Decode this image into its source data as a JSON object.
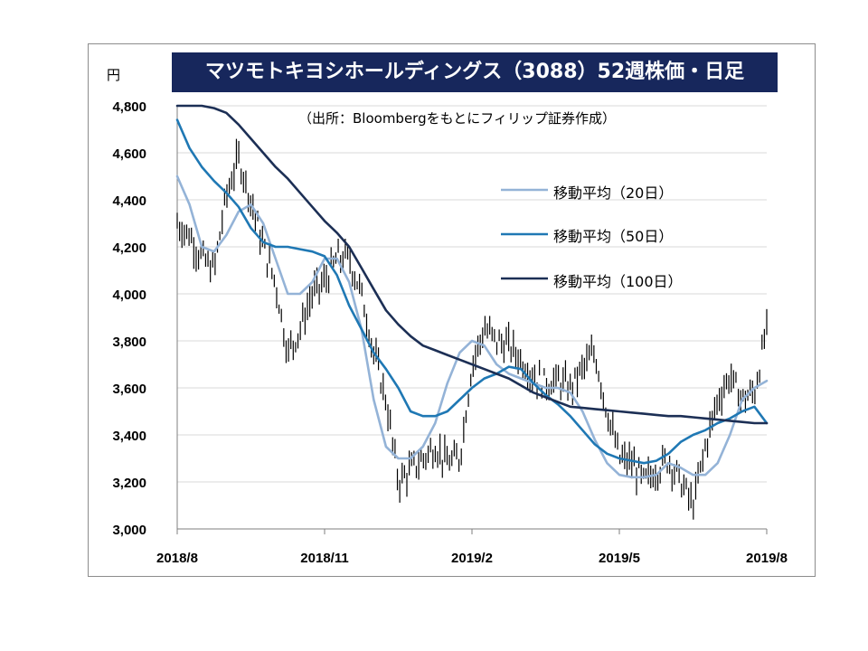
{
  "unit": "円",
  "source": "（出所：Bloombergをもとにフィリップ証券作成）",
  "colors": {
    "candle": "#000000",
    "grid": "#d9d9d9",
    "title_bg": "#17275c",
    "ma20": "#94b3d7",
    "ma50": "#1f78b4",
    "ma100": "#1c2f55"
  },
  "chart_data": {
    "type": "line",
    "title": "マツモトキヨシホールディングス（3088）52週株価・日足",
    "xlabel": "",
    "ylabel": "円",
    "ylim": [
      3000,
      4800
    ],
    "yticks": [
      3000,
      3200,
      3400,
      3600,
      3800,
      4000,
      4200,
      4400,
      4600,
      4800
    ],
    "ytick_labels": [
      "3,000",
      "3,200",
      "3,400",
      "3,600",
      "3,800",
      "4,000",
      "4,200",
      "4,400",
      "4,600",
      "4,800"
    ],
    "xlim": [
      0,
      12
    ],
    "xticks": [
      0,
      3,
      6,
      9,
      12
    ],
    "xtick_labels": [
      "2018/8",
      "2018/11",
      "2019/2",
      "2019/5",
      "2019/8"
    ],
    "grid": "horizontal",
    "legend_position": "right",
    "price": {
      "name": "",
      "x": [
        0,
        0.25,
        0.5,
        0.75,
        1,
        1.25,
        1.5,
        1.75,
        2,
        2.25,
        2.5,
        2.75,
        3,
        3.25,
        3.5,
        3.75,
        4,
        4.25,
        4.5,
        4.75,
        5,
        5.25,
        5.5,
        5.75,
        6,
        6.25,
        6.5,
        6.75,
        7,
        7.25,
        7.5,
        7.75,
        8,
        8.25,
        8.5,
        8.75,
        9,
        9.25,
        9.5,
        9.75,
        10,
        10.25,
        10.5,
        10.75,
        11,
        11.25,
        11.5,
        11.75,
        12
      ],
      "values": [
        4300,
        4250,
        4150,
        4100,
        4420,
        4580,
        4400,
        4200,
        4050,
        3750,
        3850,
        4000,
        4050,
        4150,
        4150,
        4000,
        3750,
        3550,
        3200,
        3250,
        3300,
        3350,
        3280,
        3300,
        3700,
        3850,
        3800,
        3780,
        3720,
        3650,
        3620,
        3630,
        3600,
        3680,
        3750,
        3500,
        3300,
        3280,
        3200,
        3250,
        3300,
        3200,
        3100,
        3350,
        3550,
        3650,
        3550,
        3580,
        3850
      ]
    },
    "series": [
      {
        "name": "移動平均（20日）",
        "x": [
          0,
          0.25,
          0.5,
          0.75,
          1,
          1.25,
          1.5,
          1.75,
          2,
          2.25,
          2.5,
          2.75,
          3,
          3.25,
          3.5,
          3.75,
          4,
          4.25,
          4.5,
          4.75,
          5,
          5.25,
          5.5,
          5.75,
          6,
          6.25,
          6.5,
          6.75,
          7,
          7.25,
          7.5,
          7.75,
          8,
          8.25,
          8.5,
          8.75,
          9,
          9.25,
          9.5,
          9.75,
          10,
          10.25,
          10.5,
          10.75,
          11,
          11.25,
          11.5,
          11.75,
          12
        ],
        "values": [
          4500,
          4380,
          4200,
          4180,
          4250,
          4350,
          4380,
          4300,
          4150,
          4000,
          4000,
          4050,
          4150,
          4150,
          4050,
          3850,
          3550,
          3350,
          3300,
          3300,
          3350,
          3450,
          3620,
          3750,
          3800,
          3780,
          3700,
          3660,
          3640,
          3620,
          3600,
          3600,
          3580,
          3500,
          3380,
          3280,
          3230,
          3220,
          3220,
          3230,
          3280,
          3260,
          3230,
          3230,
          3280,
          3400,
          3550,
          3600,
          3630
        ]
      },
      {
        "name": "移動平均（50日）",
        "x": [
          0,
          0.25,
          0.5,
          0.75,
          1,
          1.25,
          1.5,
          1.75,
          2,
          2.25,
          2.5,
          2.75,
          3,
          3.25,
          3.5,
          3.75,
          4,
          4.25,
          4.5,
          4.75,
          5,
          5.25,
          5.5,
          5.75,
          6,
          6.25,
          6.5,
          6.75,
          7,
          7.25,
          7.5,
          7.75,
          8,
          8.25,
          8.5,
          8.75,
          9,
          9.25,
          9.5,
          9.75,
          10,
          10.25,
          10.5,
          10.75,
          11,
          11.25,
          11.5,
          11.75,
          12
        ],
        "values": [
          4740,
          4620,
          4540,
          4480,
          4430,
          4370,
          4280,
          4220,
          4200,
          4200,
          4190,
          4180,
          4160,
          4080,
          3950,
          3850,
          3750,
          3680,
          3600,
          3500,
          3480,
          3480,
          3500,
          3550,
          3600,
          3640,
          3660,
          3690,
          3680,
          3620,
          3570,
          3530,
          3480,
          3420,
          3360,
          3320,
          3300,
          3290,
          3280,
          3290,
          3320,
          3370,
          3400,
          3420,
          3450,
          3470,
          3500,
          3520,
          3450
        ]
      },
      {
        "name": "移動平均（100日）",
        "x": [
          0,
          0.25,
          0.5,
          0.75,
          1,
          1.25,
          1.5,
          1.75,
          2,
          2.25,
          2.5,
          2.75,
          3,
          3.25,
          3.5,
          3.75,
          4,
          4.25,
          4.5,
          4.75,
          5,
          5.25,
          5.5,
          5.75,
          6,
          6.25,
          6.5,
          6.75,
          7,
          7.25,
          7.5,
          7.75,
          8,
          8.25,
          8.5,
          8.75,
          9,
          9.25,
          9.5,
          9.75,
          10,
          10.25,
          10.5,
          10.75,
          11,
          11.25,
          11.5,
          11.75,
          12
        ],
        "values": [
          4800,
          4800,
          4800,
          4790,
          4770,
          4720,
          4660,
          4600,
          4540,
          4490,
          4430,
          4370,
          4310,
          4260,
          4200,
          4110,
          4020,
          3930,
          3870,
          3820,
          3780,
          3760,
          3740,
          3720,
          3700,
          3680,
          3660,
          3640,
          3610,
          3580,
          3560,
          3540,
          3520,
          3515,
          3510,
          3505,
          3500,
          3495,
          3490,
          3485,
          3480,
          3480,
          3475,
          3470,
          3465,
          3460,
          3455,
          3450,
          3450
        ]
      }
    ]
  }
}
